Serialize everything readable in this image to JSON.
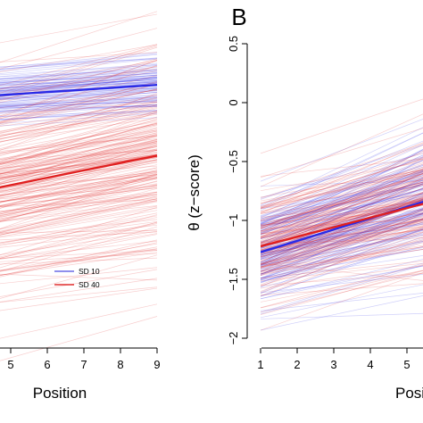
{
  "chart_data": [
    {
      "type": "line",
      "panel_label": "",
      "xlabel": "Position",
      "ylabel": "",
      "x_ticks": [
        5,
        6,
        7,
        8,
        9
      ],
      "xlim": [
        1,
        9
      ],
      "ylim": [
        -2,
        0.5
      ],
      "legend": {
        "placement": "bottom-center",
        "entries": [
          "SD 10",
          "SD 40"
        ]
      },
      "series": [
        {
          "name": "SD 10",
          "color": "#2a2ae6",
          "x": [
            1,
            9
          ],
          "values": [
            -0.01,
            0.15
          ],
          "spaghetti_spread": 0.12,
          "spaghetti_count": 90
        },
        {
          "name": "SD 40",
          "color": "#e02020",
          "x": [
            1,
            9
          ],
          "values": [
            -0.95,
            -0.45
          ],
          "spaghetti_spread": 0.45,
          "spaghetti_count": 220
        }
      ]
    },
    {
      "type": "line",
      "panel_label": "B",
      "xlabel": "Position",
      "ylabel": "θ (z−score)",
      "x_ticks": [
        1,
        2,
        3,
        4,
        5
      ],
      "y_ticks": [
        0.5,
        0,
        -0.5,
        -1,
        -1.5,
        -2
      ],
      "y_tick_labels": [
        "0.5",
        "0",
        "−0.5",
        "−1",
        "−1.5",
        "−2"
      ],
      "xlim": [
        1,
        9
      ],
      "ylim": [
        -2,
        0.5
      ],
      "series": [
        {
          "name": "SD 10",
          "color": "#2a2ae6",
          "x": [
            1,
            9
          ],
          "values": [
            -1.27,
            -0.5
          ],
          "spaghetti_spread": 0.25,
          "spaghetti_count": 150
        },
        {
          "name": "SD 40",
          "color": "#e02020",
          "x": [
            1,
            9
          ],
          "values": [
            -1.22,
            -0.57
          ],
          "spaghetti_spread": 0.25,
          "spaghetti_count": 150
        }
      ]
    }
  ]
}
